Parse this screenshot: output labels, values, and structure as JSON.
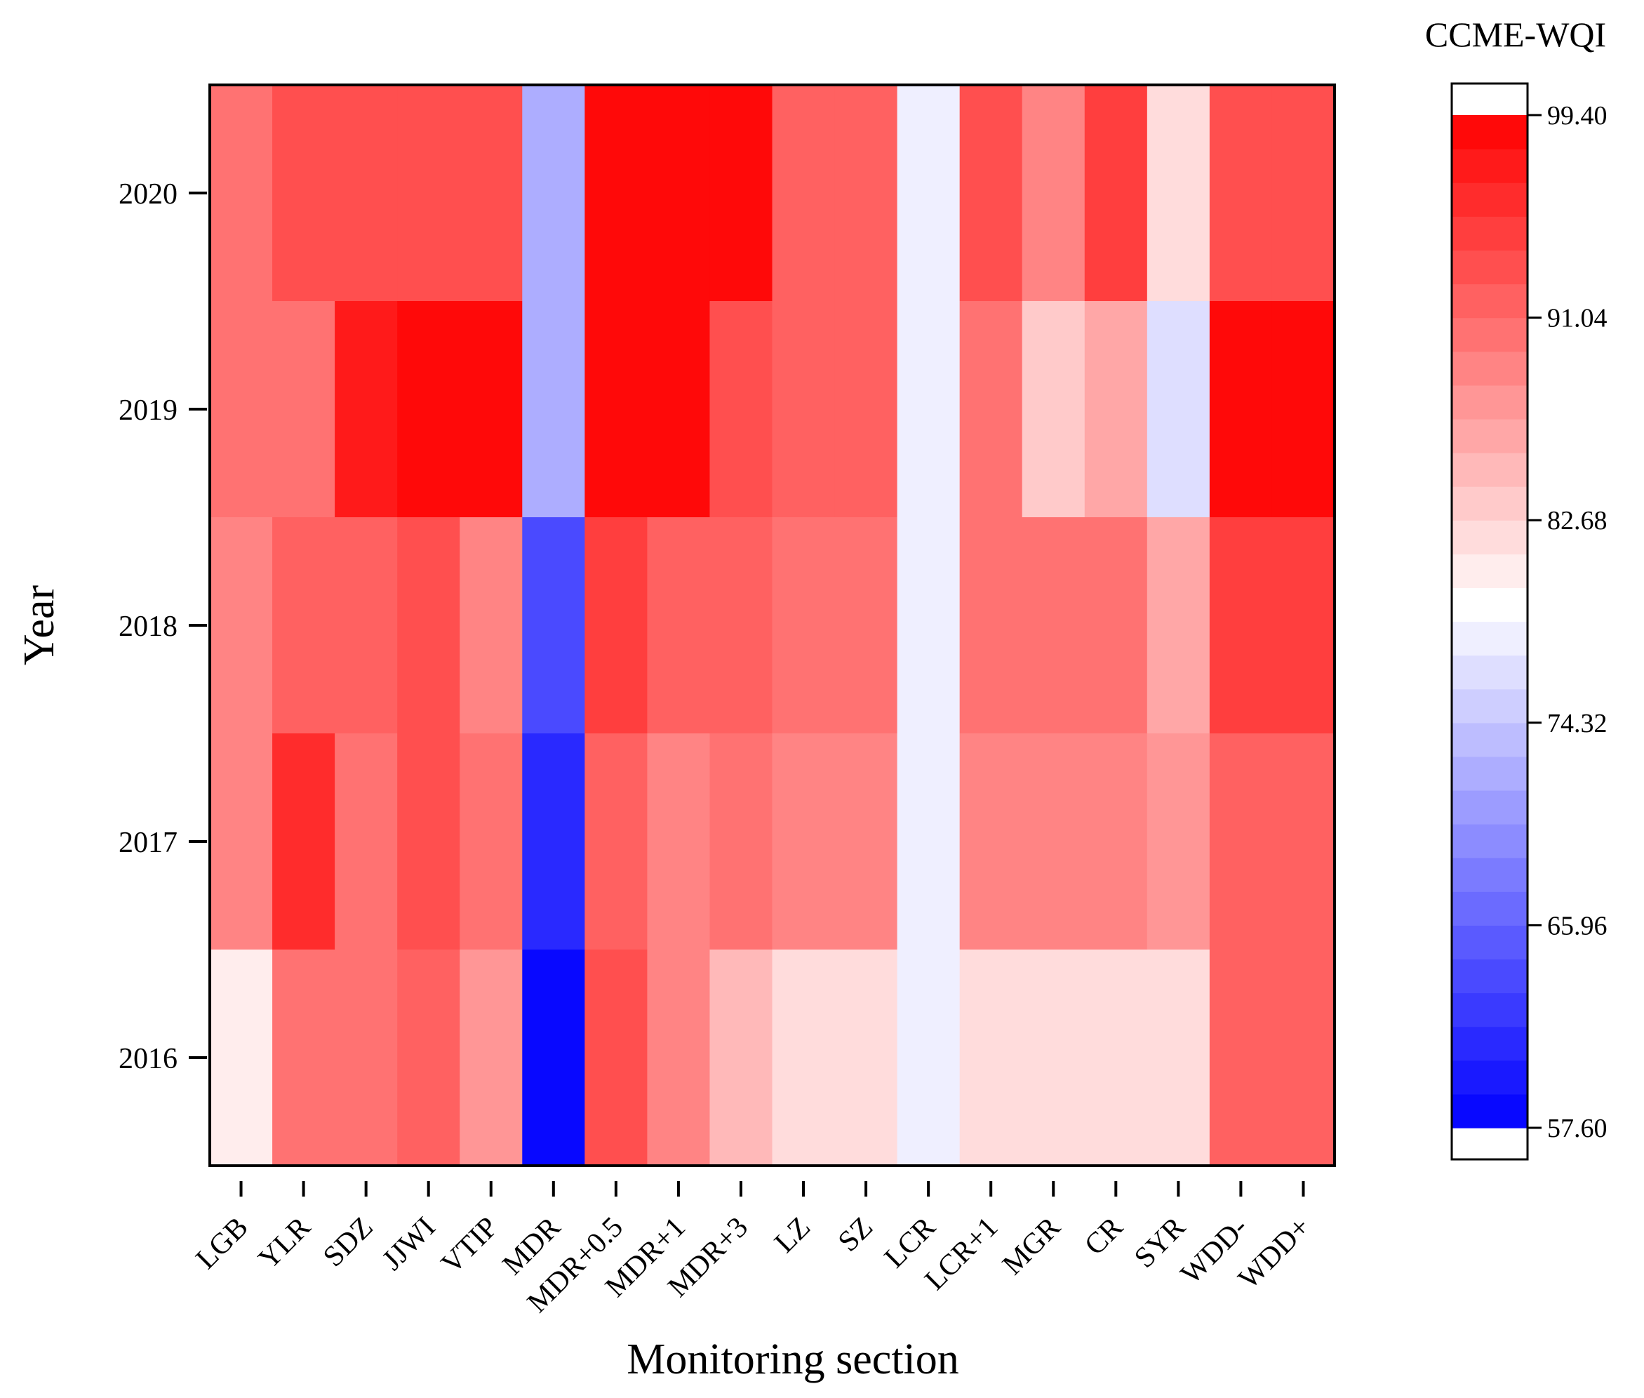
{
  "chart_data": {
    "type": "heatmap",
    "xlabel": "Monitoring section",
    "ylabel": "Year",
    "colorbar_title": "CCME-WQI",
    "x_categories": [
      "LGB",
      "YLR",
      "SDZ",
      "JJWI",
      "VTIP",
      "MDR",
      "MDR+0.5",
      "MDR+1",
      "MDR+3",
      "LZ",
      "SZ",
      "LCR",
      "LCR+1",
      "MGR",
      "CR",
      "SYR",
      "WDD-",
      "WDD+"
    ],
    "y_categories": [
      "2020",
      "2019",
      "2018",
      "2017",
      "2016"
    ],
    "values": [
      [
        91.0,
        93.5,
        93.0,
        93.5,
        93.5,
        72.0,
        100.0,
        100.0,
        100.0,
        91.5,
        91.5,
        77.5,
        92.5,
        89.5,
        94.0,
        82.5,
        93.5,
        93.5
      ],
      [
        91.0,
        90.5,
        98.0,
        100.0,
        100.0,
        72.0,
        100.0,
        100.0,
        93.5,
        92.0,
        92.0,
        77.5,
        90.0,
        84.0,
        86.0,
        76.0,
        100.0,
        100.0
      ],
      [
        89.5,
        91.5,
        92.0,
        93.5,
        89.5,
        64.0,
        94.0,
        91.5,
        92.0,
        90.0,
        90.0,
        77.5,
        90.0,
        90.0,
        90.5,
        86.5,
        94.5,
        94.5
      ],
      [
        89.5,
        96.0,
        91.0,
        93.5,
        90.0,
        61.0,
        92.0,
        89.5,
        90.5,
        88.5,
        88.5,
        77.5,
        88.5,
        88.5,
        89.5,
        87.5,
        91.5,
        91.5
      ],
      [
        80.5,
        90.0,
        90.0,
        92.0,
        88.0,
        58.0,
        93.0,
        89.5,
        85.0,
        82.5,
        82.5,
        77.5,
        82.5,
        82.5,
        82.5,
        82.5,
        92.0,
        92.0
      ]
    ],
    "colorbar": {
      "min": 57.6,
      "max": 99.4,
      "ticks": [
        "99.40",
        "91.04",
        "82.68",
        "74.32",
        "65.96",
        "57.60"
      ],
      "levels": 30,
      "low_color": "#0000ff",
      "mid_color": "#ffffff",
      "high_color": "#ff0000",
      "mid_value": 79.2
    }
  }
}
